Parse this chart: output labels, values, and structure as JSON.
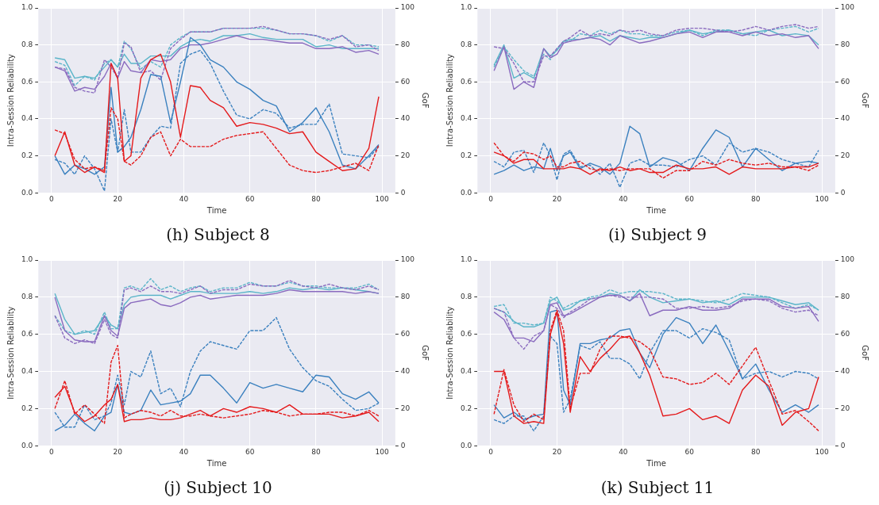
{
  "chart_data": [
    {
      "type": "line",
      "title": "(h) Subject 8",
      "xlabel": "Time",
      "ylabel": "Intra-Session Reliability",
      "y2label": "GoF",
      "xlim": [
        -4,
        104
      ],
      "xticks": [
        0,
        20,
        40,
        60,
        80,
        100
      ],
      "ylim": [
        0,
        1
      ],
      "yticks": [
        {
          "value": 0,
          "label": "0.0"
        },
        {
          "value": 0.2,
          "label": "0.2"
        },
        {
          "value": 0.4,
          "label": "0.4"
        },
        {
          "value": 0.6,
          "label": "0.6"
        },
        {
          "value": 0.8,
          "label": "0.8"
        },
        {
          "value": 1,
          "label": "1.0"
        }
      ],
      "y2lim": [
        0,
        100
      ],
      "y2ticks": [
        0,
        20,
        40,
        60,
        80,
        100
      ],
      "grid": true,
      "legend": false,
      "marker": "none",
      "x": [
        1,
        4,
        7,
        10,
        13,
        16,
        18,
        20,
        22,
        24,
        27,
        30,
        33,
        36,
        39,
        42,
        45,
        48,
        52,
        56,
        60,
        64,
        68,
        72,
        76,
        80,
        84,
        88,
        92,
        96,
        99
      ],
      "series": [
        {
          "color": "#5bb5c9",
          "axis": "y2",
          "line_style": "solid",
          "values": [
            73,
            72,
            62,
            63,
            62,
            68,
            72,
            68,
            75,
            70,
            70,
            74,
            74,
            74,
            79,
            82,
            83,
            82,
            85,
            85,
            86,
            84,
            83,
            83,
            83,
            79,
            80,
            78,
            78,
            78,
            78
          ]
        },
        {
          "color": "#5bb5c9",
          "axis": "y2",
          "line_style": "dashed",
          "values": [
            71,
            69,
            58,
            63,
            61,
            70,
            72,
            68,
            82,
            78,
            67,
            71,
            68,
            80,
            84,
            87,
            87,
            87,
            89,
            89,
            89,
            89,
            88,
            86,
            86,
            85,
            82,
            85,
            80,
            80,
            79
          ]
        },
        {
          "color": "#8a6bbf",
          "axis": "y2",
          "line_style": "solid",
          "values": [
            68,
            66,
            55,
            57,
            56,
            63,
            70,
            62,
            71,
            66,
            65,
            72,
            71,
            72,
            78,
            80,
            80,
            81,
            83,
            85,
            83,
            83,
            82,
            81,
            81,
            78,
            78,
            79,
            76,
            77,
            75
          ]
        },
        {
          "color": "#8a6bbf",
          "axis": "y2",
          "line_style": "dashed",
          "values": [
            68,
            67,
            57,
            55,
            54,
            72,
            68,
            62,
            81,
            79,
            65,
            66,
            61,
            78,
            83,
            87,
            87,
            87,
            89,
            89,
            89,
            90,
            88,
            86,
            86,
            85,
            83,
            85,
            79,
            80,
            77
          ]
        },
        {
          "color": "#3b81bf",
          "axis": "y",
          "line_style": "solid",
          "values": [
            0.2,
            0.1,
            0.15,
            0.13,
            0.1,
            0.14,
            0.57,
            0.22,
            0.25,
            0.3,
            0.45,
            0.64,
            0.63,
            0.38,
            0.6,
            0.84,
            0.8,
            0.72,
            0.68,
            0.6,
            0.56,
            0.5,
            0.47,
            0.33,
            0.38,
            0.46,
            0.33,
            0.15,
            0.13,
            0.2,
            0.26
          ]
        },
        {
          "color": "#3b81bf",
          "axis": "y",
          "line_style": "dashed",
          "values": [
            0.18,
            0.16,
            0.1,
            0.2,
            0.13,
            0.01,
            0.4,
            0.22,
            0.45,
            0.22,
            0.22,
            0.3,
            0.36,
            0.35,
            0.7,
            0.75,
            0.77,
            0.7,
            0.55,
            0.42,
            0.4,
            0.45,
            0.43,
            0.35,
            0.37,
            0.37,
            0.48,
            0.21,
            0.2,
            0.19,
            0.25
          ]
        },
        {
          "color": "#e41a1c",
          "axis": "y",
          "line_style": "solid",
          "values": [
            0.2,
            0.33,
            0.15,
            0.11,
            0.14,
            0.11,
            0.7,
            0.62,
            0.17,
            0.2,
            0.62,
            0.72,
            0.75,
            0.6,
            0.3,
            0.58,
            0.57,
            0.5,
            0.46,
            0.36,
            0.38,
            0.37,
            0.35,
            0.32,
            0.33,
            0.22,
            0.17,
            0.12,
            0.13,
            0.24,
            0.52
          ]
        },
        {
          "color": "#e41a1c",
          "axis": "y",
          "line_style": "dashed",
          "values": [
            0.34,
            0.32,
            0.18,
            0.13,
            0.14,
            0.12,
            0.46,
            0.4,
            0.17,
            0.15,
            0.2,
            0.3,
            0.33,
            0.2,
            0.29,
            0.25,
            0.25,
            0.25,
            0.29,
            0.31,
            0.32,
            0.33,
            0.24,
            0.15,
            0.12,
            0.11,
            0.12,
            0.14,
            0.16,
            0.12,
            0.26
          ]
        }
      ]
    },
    {
      "type": "line",
      "title": "(i) Subject 9",
      "xlabel": "Time",
      "ylabel": "Intra-Session Reliability",
      "y2label": "GoF",
      "xlim": [
        -4,
        104
      ],
      "xticks": [
        0,
        20,
        40,
        60,
        80,
        100
      ],
      "ylim": [
        0,
        1
      ],
      "yticks": [
        {
          "value": 0,
          "label": "0.0"
        },
        {
          "value": 0.2,
          "label": "0.2"
        },
        {
          "value": 0.4,
          "label": "0.4"
        },
        {
          "value": 0.6,
          "label": "0.6"
        },
        {
          "value": 0.8,
          "label": "0.8"
        },
        {
          "value": 1,
          "label": "1.0"
        }
      ],
      "y2lim": [
        0,
        100
      ],
      "y2ticks": [
        0,
        20,
        40,
        60,
        80,
        100
      ],
      "grid": true,
      "legend": false,
      "marker": "none",
      "x": [
        1,
        4,
        7,
        10,
        13,
        16,
        18,
        20,
        22,
        24,
        27,
        30,
        33,
        36,
        39,
        42,
        45,
        48,
        52,
        56,
        60,
        64,
        68,
        72,
        76,
        80,
        84,
        88,
        92,
        96,
        99
      ],
      "series": [
        {
          "color": "#5bb5c9",
          "axis": "y2",
          "line_style": "solid",
          "values": [
            69,
            80,
            62,
            65,
            62,
            78,
            74,
            77,
            82,
            83,
            83,
            84,
            85,
            82,
            85,
            84,
            83,
            84,
            84,
            86,
            88,
            86,
            87,
            88,
            86,
            87,
            88,
            85,
            86,
            85,
            80
          ]
        },
        {
          "color": "#5bb5c9",
          "axis": "y2",
          "line_style": "dashed",
          "values": [
            68,
            79,
            72,
            66,
            63,
            75,
            72,
            78,
            82,
            82,
            86,
            85,
            88,
            86,
            88,
            86,
            86,
            85,
            85,
            87,
            88,
            85,
            88,
            88,
            86,
            85,
            88,
            89,
            90,
            87,
            89
          ]
        },
        {
          "color": "#8a6bbf",
          "axis": "y2",
          "line_style": "solid",
          "values": [
            66,
            79,
            56,
            60,
            57,
            78,
            73,
            75,
            81,
            82,
            83,
            84,
            83,
            80,
            85,
            83,
            81,
            82,
            84,
            86,
            87,
            84,
            87,
            87,
            85,
            87,
            85,
            86,
            84,
            85,
            78
          ]
        },
        {
          "color": "#8a6bbf",
          "axis": "y2",
          "line_style": "dashed",
          "values": [
            79,
            78,
            70,
            60,
            60,
            74,
            74,
            78,
            82,
            84,
            88,
            85,
            86,
            85,
            88,
            87,
            88,
            86,
            85,
            88,
            89,
            89,
            88,
            87,
            88,
            90,
            88,
            90,
            91,
            89,
            90
          ]
        },
        {
          "color": "#3b81bf",
          "axis": "y",
          "line_style": "solid",
          "values": [
            0.1,
            0.12,
            0.15,
            0.12,
            0.14,
            0.13,
            0.24,
            0.12,
            0.2,
            0.22,
            0.13,
            0.16,
            0.14,
            0.1,
            0.16,
            0.36,
            0.32,
            0.14,
            0.19,
            0.17,
            0.12,
            0.24,
            0.34,
            0.3,
            0.14,
            0.24,
            0.18,
            0.12,
            0.16,
            0.17,
            0.16
          ]
        },
        {
          "color": "#3b81bf",
          "axis": "y",
          "line_style": "dashed",
          "values": [
            0.17,
            0.14,
            0.22,
            0.23,
            0.11,
            0.27,
            0.2,
            0.07,
            0.21,
            0.23,
            0.14,
            0.15,
            0.1,
            0.16,
            0.03,
            0.16,
            0.18,
            0.15,
            0.15,
            0.14,
            0.18,
            0.2,
            0.15,
            0.27,
            0.22,
            0.24,
            0.22,
            0.18,
            0.16,
            0.14,
            0.23
          ]
        },
        {
          "color": "#e41a1c",
          "axis": "y",
          "line_style": "solid",
          "values": [
            0.22,
            0.2,
            0.16,
            0.18,
            0.18,
            0.13,
            0.13,
            0.13,
            0.13,
            0.14,
            0.13,
            0.1,
            0.13,
            0.12,
            0.14,
            0.12,
            0.13,
            0.11,
            0.11,
            0.15,
            0.13,
            0.13,
            0.14,
            0.1,
            0.14,
            0.13,
            0.13,
            0.13,
            0.14,
            0.14,
            0.16
          ]
        },
        {
          "color": "#e41a1c",
          "axis": "y",
          "line_style": "dashed",
          "values": [
            0.27,
            0.2,
            0.17,
            0.22,
            0.21,
            0.18,
            0.2,
            0.14,
            0.14,
            0.16,
            0.17,
            0.13,
            0.12,
            0.13,
            0.12,
            0.13,
            0.13,
            0.13,
            0.08,
            0.12,
            0.12,
            0.17,
            0.15,
            0.18,
            0.16,
            0.15,
            0.16,
            0.14,
            0.14,
            0.12,
            0.15
          ]
        }
      ]
    },
    {
      "type": "line",
      "title": "(j) Subject 10",
      "xlabel": "Time",
      "ylabel": "Intra-Session Reliability",
      "y2label": "GoF",
      "xlim": [
        -4,
        104
      ],
      "xticks": [
        0,
        20,
        40,
        60,
        80,
        100
      ],
      "ylim": [
        0,
        1
      ],
      "yticks": [
        {
          "value": 0,
          "label": "0.0"
        },
        {
          "value": 0.2,
          "label": "0.2"
        },
        {
          "value": 0.4,
          "label": "0.4"
        },
        {
          "value": 0.6,
          "label": "0.6"
        },
        {
          "value": 0.8,
          "label": "0.8"
        },
        {
          "value": 1,
          "label": "1.0"
        }
      ],
      "y2lim": [
        0,
        100
      ],
      "y2ticks": [
        0,
        20,
        40,
        60,
        80,
        100
      ],
      "grid": true,
      "legend": false,
      "marker": "none",
      "x": [
        1,
        4,
        7,
        10,
        13,
        16,
        18,
        20,
        22,
        24,
        27,
        30,
        33,
        36,
        39,
        42,
        45,
        48,
        52,
        56,
        60,
        64,
        68,
        72,
        76,
        80,
        84,
        88,
        92,
        96,
        99
      ],
      "series": [
        {
          "color": "#5bb5c9",
          "axis": "y2",
          "line_style": "solid",
          "values": [
            82,
            68,
            60,
            61,
            62,
            70,
            65,
            63,
            76,
            80,
            81,
            81,
            81,
            79,
            81,
            83,
            83,
            82,
            82,
            82,
            83,
            82,
            83,
            85,
            84,
            85,
            84,
            85,
            84,
            83,
            82
          ]
        },
        {
          "color": "#5bb5c9",
          "axis": "y2",
          "line_style": "dashed",
          "values": [
            70,
            62,
            60,
            62,
            60,
            72,
            63,
            63,
            85,
            86,
            84,
            90,
            84,
            86,
            83,
            85,
            86,
            83,
            85,
            85,
            88,
            86,
            86,
            88,
            86,
            86,
            85,
            85,
            85,
            87,
            84
          ]
        },
        {
          "color": "#8a6bbf",
          "axis": "y2",
          "line_style": "solid",
          "values": [
            80,
            62,
            57,
            56,
            56,
            70,
            62,
            59,
            74,
            77,
            78,
            79,
            76,
            75,
            77,
            80,
            81,
            79,
            80,
            81,
            81,
            81,
            82,
            84,
            83,
            83,
            83,
            83,
            82,
            83,
            82
          ]
        },
        {
          "color": "#8a6bbf",
          "axis": "y2",
          "line_style": "dashed",
          "values": [
            70,
            58,
            55,
            57,
            55,
            68,
            60,
            58,
            84,
            85,
            83,
            86,
            83,
            83,
            82,
            84,
            86,
            82,
            84,
            84,
            87,
            86,
            86,
            89,
            86,
            85,
            87,
            85,
            84,
            86,
            84
          ]
        },
        {
          "color": "#3b81bf",
          "axis": "y",
          "line_style": "solid",
          "values": [
            0.08,
            0.11,
            0.17,
            0.12,
            0.08,
            0.16,
            0.18,
            0.33,
            0.18,
            0.17,
            0.19,
            0.3,
            0.22,
            0.23,
            0.24,
            0.28,
            0.38,
            0.38,
            0.31,
            0.23,
            0.34,
            0.31,
            0.33,
            0.31,
            0.29,
            0.38,
            0.37,
            0.28,
            0.25,
            0.29,
            0.23
          ]
        },
        {
          "color": "#3b81bf",
          "axis": "y",
          "line_style": "dashed",
          "values": [
            0.18,
            0.1,
            0.1,
            0.22,
            0.14,
            0.16,
            0.23,
            0.38,
            0.22,
            0.4,
            0.37,
            0.51,
            0.28,
            0.31,
            0.21,
            0.4,
            0.51,
            0.56,
            0.54,
            0.52,
            0.62,
            0.62,
            0.69,
            0.52,
            0.42,
            0.35,
            0.32,
            0.25,
            0.19,
            0.2,
            0.23
          ]
        },
        {
          "color": "#e41a1c",
          "axis": "y",
          "line_style": "solid",
          "values": [
            0.26,
            0.32,
            0.18,
            0.13,
            0.16,
            0.22,
            0.25,
            0.33,
            0.13,
            0.14,
            0.14,
            0.15,
            0.14,
            0.14,
            0.15,
            0.17,
            0.19,
            0.16,
            0.2,
            0.18,
            0.21,
            0.2,
            0.18,
            0.22,
            0.17,
            0.17,
            0.17,
            0.15,
            0.16,
            0.18,
            0.13
          ]
        },
        {
          "color": "#e41a1c",
          "axis": "y",
          "line_style": "dashed",
          "values": [
            0.2,
            0.35,
            0.17,
            0.22,
            0.17,
            0.12,
            0.45,
            0.54,
            0.15,
            0.17,
            0.19,
            0.18,
            0.16,
            0.19,
            0.16,
            0.16,
            0.17,
            0.16,
            0.15,
            0.16,
            0.17,
            0.19,
            0.18,
            0.16,
            0.17,
            0.17,
            0.18,
            0.18,
            0.16,
            0.19,
            0.16
          ]
        }
      ]
    },
    {
      "type": "line",
      "title": "(k) Subject 11",
      "xlabel": "Time",
      "ylabel": "Intra-Session Reliability",
      "y2label": "GoF",
      "xlim": [
        -4,
        104
      ],
      "xticks": [
        0,
        20,
        40,
        60,
        80,
        100
      ],
      "ylim": [
        0,
        1
      ],
      "yticks": [
        {
          "value": 0,
          "label": "0.0"
        },
        {
          "value": 0.2,
          "label": "0.2"
        },
        {
          "value": 0.4,
          "label": "0.4"
        },
        {
          "value": 0.6,
          "label": "0.6"
        },
        {
          "value": 0.8,
          "label": "0.8"
        },
        {
          "value": 1,
          "label": "1.0"
        }
      ],
      "y2lim": [
        0,
        100
      ],
      "y2ticks": [
        0,
        20,
        40,
        60,
        80,
        100
      ],
      "grid": true,
      "legend": false,
      "marker": "none",
      "x": [
        1,
        4,
        7,
        10,
        13,
        16,
        18,
        20,
        22,
        24,
        27,
        30,
        33,
        36,
        39,
        42,
        45,
        48,
        52,
        56,
        60,
        64,
        68,
        72,
        76,
        80,
        84,
        88,
        92,
        96,
        99
      ],
      "series": [
        {
          "color": "#5bb5c9",
          "axis": "y2",
          "line_style": "solid",
          "values": [
            74,
            72,
            67,
            64,
            64,
            66,
            78,
            80,
            73,
            74,
            78,
            79,
            80,
            82,
            81,
            78,
            84,
            80,
            77,
            78,
            79,
            77,
            78,
            76,
            80,
            80,
            80,
            78,
            76,
            77,
            73
          ]
        },
        {
          "color": "#5bb5c9",
          "axis": "y2",
          "line_style": "dashed",
          "values": [
            75,
            76,
            66,
            66,
            65,
            66,
            80,
            78,
            74,
            76,
            78,
            80,
            81,
            84,
            82,
            83,
            83,
            83,
            82,
            79,
            79,
            78,
            77,
            79,
            82,
            81,
            80,
            77,
            74,
            76,
            73
          ]
        },
        {
          "color": "#8a6bbf",
          "axis": "y2",
          "line_style": "solid",
          "values": [
            72,
            68,
            58,
            58,
            56,
            62,
            76,
            77,
            70,
            71,
            74,
            77,
            80,
            81,
            81,
            78,
            82,
            70,
            73,
            73,
            75,
            73,
            73,
            74,
            79,
            79,
            79,
            75,
            74,
            75,
            67
          ]
        },
        {
          "color": "#8a6bbf",
          "axis": "y2",
          "line_style": "dashed",
          "values": [
            74,
            72,
            58,
            52,
            59,
            62,
            76,
            74,
            69,
            72,
            75,
            79,
            80,
            81,
            80,
            80,
            80,
            80,
            79,
            74,
            74,
            75,
            74,
            75,
            78,
            79,
            78,
            74,
            72,
            73,
            70
          ]
        },
        {
          "color": "#3b81bf",
          "axis": "y",
          "line_style": "solid",
          "values": [
            0.22,
            0.15,
            0.18,
            0.14,
            0.16,
            0.17,
            0.72,
            0.73,
            0.3,
            0.22,
            0.55,
            0.55,
            0.57,
            0.58,
            0.62,
            0.63,
            0.5,
            0.42,
            0.6,
            0.69,
            0.66,
            0.55,
            0.65,
            0.51,
            0.36,
            0.44,
            0.3,
            0.18,
            0.22,
            0.18,
            0.22
          ]
        },
        {
          "color": "#3b81bf",
          "axis": "y",
          "line_style": "dashed",
          "values": [
            0.14,
            0.12,
            0.16,
            0.16,
            0.08,
            0.16,
            0.59,
            0.55,
            0.18,
            0.25,
            0.54,
            0.52,
            0.56,
            0.47,
            0.47,
            0.44,
            0.36,
            0.5,
            0.62,
            0.62,
            0.58,
            0.63,
            0.61,
            0.57,
            0.36,
            0.39,
            0.4,
            0.37,
            0.4,
            0.39,
            0.36
          ]
        },
        {
          "color": "#e41a1c",
          "axis": "y",
          "line_style": "solid",
          "values": [
            0.4,
            0.4,
            0.16,
            0.12,
            0.13,
            0.12,
            0.6,
            0.72,
            0.55,
            0.18,
            0.48,
            0.4,
            0.47,
            0.52,
            0.58,
            0.59,
            0.5,
            0.38,
            0.16,
            0.17,
            0.2,
            0.14,
            0.16,
            0.12,
            0.3,
            0.38,
            0.32,
            0.11,
            0.18,
            0.2,
            0.37
          ]
        },
        {
          "color": "#e41a1c",
          "axis": "y",
          "line_style": "dashed",
          "values": [
            0.17,
            0.41,
            0.22,
            0.13,
            0.17,
            0.14,
            0.62,
            0.73,
            0.62,
            0.2,
            0.39,
            0.39,
            0.52,
            0.59,
            0.59,
            0.58,
            0.56,
            0.52,
            0.37,
            0.36,
            0.33,
            0.34,
            0.39,
            0.33,
            0.43,
            0.53,
            0.35,
            0.17,
            0.19,
            0.13,
            0.08
          ]
        }
      ]
    }
  ]
}
